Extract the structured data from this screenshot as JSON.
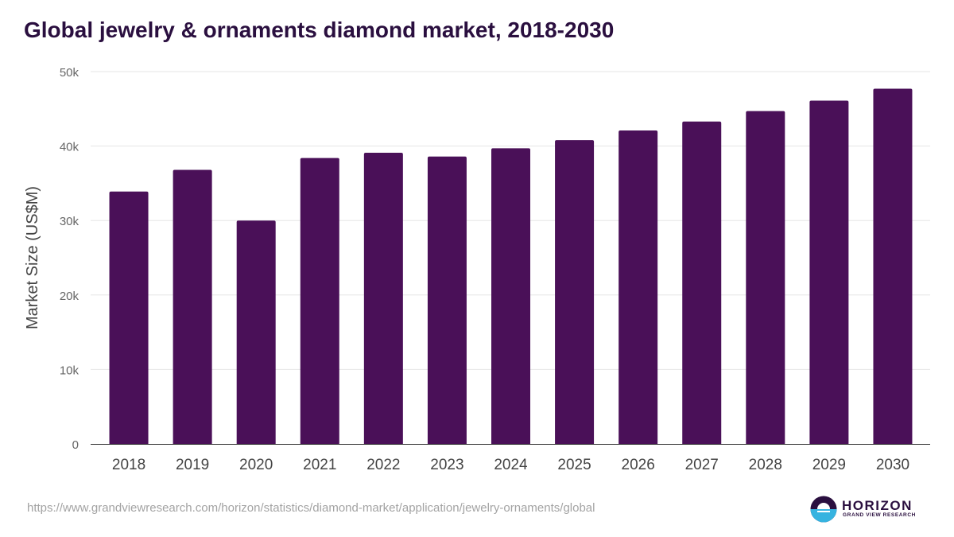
{
  "header": {
    "title": "Global jewelry & ornaments diamond market, 2018-2030"
  },
  "footer": {
    "source_url": "https://www.grandviewresearch.com/horizon/statistics/diamond-market/application/jewelry-ornaments/global",
    "logo_brand": "HORIZON",
    "logo_sub": "GRAND VIEW RESEARCH"
  },
  "colors": {
    "bar": "#4a1058",
    "title": "#2a0f3f",
    "grid": "#e6e6e6",
    "axis": "#333333",
    "tick_label": "#666666",
    "category_label": "#444444",
    "logo_dark": "#2a0f3f",
    "logo_light": "#36b3e0"
  },
  "chart_data": {
    "type": "bar",
    "title": "Global jewelry & ornaments diamond market, 2018-2030",
    "xlabel": "",
    "ylabel": "Market Size (US$M)",
    "categories": [
      "2018",
      "2019",
      "2020",
      "2021",
      "2022",
      "2023",
      "2024",
      "2025",
      "2026",
      "2027",
      "2028",
      "2029",
      "2030"
    ],
    "values": [
      33900,
      36800,
      30000,
      38400,
      39100,
      38600,
      39700,
      40800,
      42100,
      43300,
      44700,
      46100,
      47700
    ],
    "ylim": [
      0,
      50000
    ],
    "yticks": [
      0,
      10000,
      20000,
      30000,
      40000,
      50000
    ],
    "ytick_labels": [
      "0",
      "10k",
      "20k",
      "30k",
      "40k",
      "50k"
    ],
    "grid": true,
    "legend": "none"
  }
}
